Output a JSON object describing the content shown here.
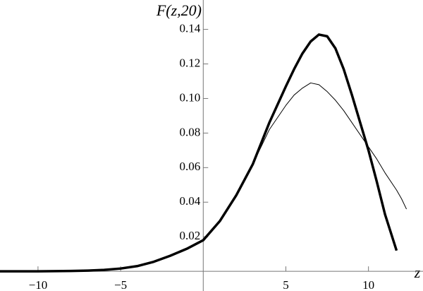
{
  "chart_data": {
    "type": "line",
    "y_label": "F(z,20)",
    "x_label": "z",
    "x": [
      -12.3,
      -11,
      -10,
      -9,
      -8,
      -7,
      -6,
      -5,
      -4,
      -3,
      -2,
      -1,
      0,
      1,
      2,
      3,
      4,
      5,
      5.5,
      6,
      6.5,
      7,
      7.5,
      8,
      8.5,
      9,
      9.5,
      10,
      10.5,
      11,
      11.7,
      12,
      12.3
    ],
    "series": [
      {
        "color": "#000000",
        "width": 1,
        "values": [
          0,
          0,
          0,
          0.0001,
          0.0002,
          0.0004,
          0.0008,
          0.0016,
          0.003,
          0.0055,
          0.009,
          0.013,
          0.018,
          0.029,
          0.044,
          0.062,
          0.082,
          0.096,
          0.102,
          0.106,
          0.109,
          0.108,
          0.104,
          0.099,
          0.093,
          0.086,
          0.079,
          0.072,
          0.065,
          0.057,
          0.047,
          0.042,
          0.036
        ]
      },
      {
        "color": "#000000",
        "width": 3.5,
        "values": [
          0,
          0,
          0,
          0.0001,
          0.0002,
          0.0004,
          0.0008,
          0.0016,
          0.003,
          0.0055,
          0.009,
          0.013,
          0.018,
          0.029,
          0.044,
          0.062,
          0.086,
          0.107,
          0.117,
          0.126,
          0.133,
          0.137,
          0.136,
          0.129,
          0.117,
          0.102,
          0.086,
          0.07,
          0.052,
          0.033,
          0.012,
          null,
          null
        ]
      }
    ],
    "xlim": [
      -12.3,
      13.3
    ],
    "ylim": [
      -0.0114,
      0.157
    ],
    "xticks": [
      {
        "value": -10,
        "label": "−10"
      },
      {
        "value": -5,
        "label": "−5"
      },
      5,
      10
    ],
    "yticks": [
      0.02,
      0.04,
      0.06,
      0.08,
      {
        "value": 0.1,
        "label": "0.10"
      },
      0.12,
      0.14
    ]
  }
}
